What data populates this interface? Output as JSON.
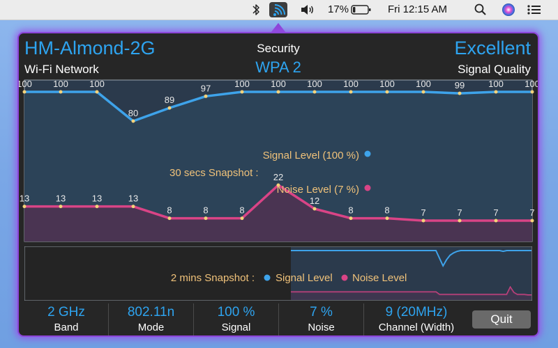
{
  "menubar": {
    "battery_percent": "17%",
    "battery_level": 0.17,
    "clock": "Fri 12:15 AM"
  },
  "header": {
    "ssid": "HM-Almond-2G",
    "network_type": "Wi-Fi Network",
    "security_label": "Security",
    "security_value": "WPA 2",
    "quality_value": "Excellent",
    "quality_label": "Signal Quality"
  },
  "colors": {
    "signal": "#3ea3ea",
    "noise": "#d94486",
    "accent": "#2ea4f0",
    "glow": "#8c45d8",
    "legend_text": "#f0c27a"
  },
  "chart_data": [
    {
      "type": "area",
      "series": [
        {
          "name": "Signal Level",
          "values": [
            100,
            100,
            100,
            80,
            89,
            97,
            100,
            100,
            100,
            100,
            100,
            100,
            99,
            100,
            100
          ]
        },
        {
          "name": "Noise Level",
          "values": [
            13,
            13,
            13,
            13,
            8,
            8,
            8,
            22,
            12,
            8,
            8,
            7,
            7,
            7,
            7
          ]
        }
      ],
      "ylim": [
        0,
        100
      ]
    },
    {
      "type": "line",
      "series": [
        {
          "name": "Signal Level",
          "values": [
            100,
            100,
            100,
            100,
            100,
            100,
            100,
            100,
            100,
            100,
            100,
            100,
            100,
            100,
            100,
            100,
            100,
            100,
            100,
            100,
            100,
            100,
            100,
            100,
            100,
            100,
            100,
            100,
            100,
            100,
            100,
            100,
            100,
            100,
            100,
            100,
            100,
            100,
            100,
            100,
            100,
            100,
            90,
            80,
            88,
            94,
            97,
            99,
            100,
            100,
            100,
            100,
            100,
            100,
            100,
            100,
            100,
            100,
            100,
            100,
            99,
            100,
            100,
            100,
            100,
            100,
            100,
            100,
            100
          ]
        },
        {
          "name": "Noise Level",
          "values": [
            13,
            13,
            13,
            13,
            13,
            13,
            13,
            13,
            13,
            13,
            13,
            13,
            13,
            13,
            13,
            13,
            13,
            13,
            13,
            13,
            13,
            13,
            13,
            13,
            13,
            13,
            13,
            13,
            13,
            13,
            13,
            13,
            13,
            13,
            13,
            13,
            13,
            13,
            13,
            13,
            13,
            13,
            8,
            8,
            8,
            8,
            8,
            8,
            8,
            8,
            8,
            8,
            8,
            8,
            8,
            8,
            8,
            8,
            8,
            8,
            8,
            8,
            22,
            12,
            8,
            8,
            8,
            7,
            7
          ]
        }
      ]
    }
  ],
  "snapshot30": {
    "title": "30 secs Snapshot :",
    "signal_legend": "Signal Level (100 %)",
    "noise_legend": "Noise  Level (7 %)"
  },
  "snapshot2m": {
    "title": "2 mins Snapshot :",
    "signal_legend": "Signal Level",
    "noise_legend": "Noise  Level"
  },
  "footer": {
    "band": {
      "value": "2 GHz",
      "label": "Band"
    },
    "mode": {
      "value": "802.11n",
      "label": "Mode"
    },
    "signal": {
      "value": "100 %",
      "label": "Signal"
    },
    "noise": {
      "value": "7 %",
      "label": "Noise"
    },
    "channel": {
      "value": "9 (20MHz)",
      "label": "Channel (Width)"
    },
    "quit_label": "Quit"
  }
}
